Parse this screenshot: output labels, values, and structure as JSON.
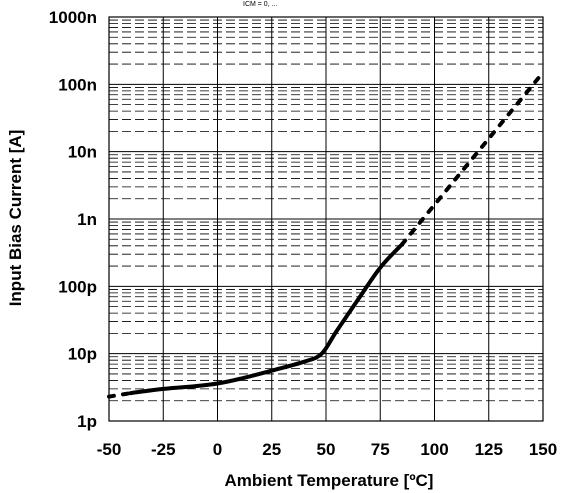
{
  "chart_data": {
    "type": "line",
    "top_note": "ICM = 0, ... ",
    "xlabel": "Ambient Temperature [ºC]",
    "ylabel": "Input Bias Current [A]",
    "x_scale": "linear",
    "y_scale": "log",
    "xlim": [
      -50,
      150
    ],
    "ylim": [
      1e-12,
      1e-06
    ],
    "x_ticks": [
      -50,
      -25,
      0,
      25,
      50,
      75,
      100,
      125,
      150
    ],
    "x_tick_labels": [
      "-50",
      "-25",
      "0",
      "25",
      "50",
      "75",
      "100",
      "125",
      "150"
    ],
    "y_ticks": [
      1e-12,
      1e-11,
      1e-10,
      1e-09,
      1e-08,
      1e-07,
      1e-06
    ],
    "y_tick_labels": [
      "1p",
      "10p",
      "100p",
      "1n",
      "10n",
      "100n",
      "1000n"
    ],
    "grid": true,
    "series": [
      {
        "style": "solid",
        "x": [
          -40,
          -25,
          -10,
          0,
          10,
          25,
          40,
          48,
          55,
          65,
          75,
          85
        ],
        "y": [
          2.6e-12,
          3e-12,
          3.3e-12,
          3.6e-12,
          4.2e-12,
          5.6e-12,
          7.6e-12,
          1e-11,
          2.2e-11,
          6.5e-11,
          1.9e-10,
          4.2e-10
        ]
      },
      {
        "style": "dotted",
        "x": [
          -50,
          -40
        ],
        "y": [
          2.3e-12,
          2.6e-12
        ]
      },
      {
        "style": "dotted",
        "x": [
          85,
          150
        ],
        "y": [
          4.2e-10,
          1.5e-07
        ]
      }
    ]
  }
}
